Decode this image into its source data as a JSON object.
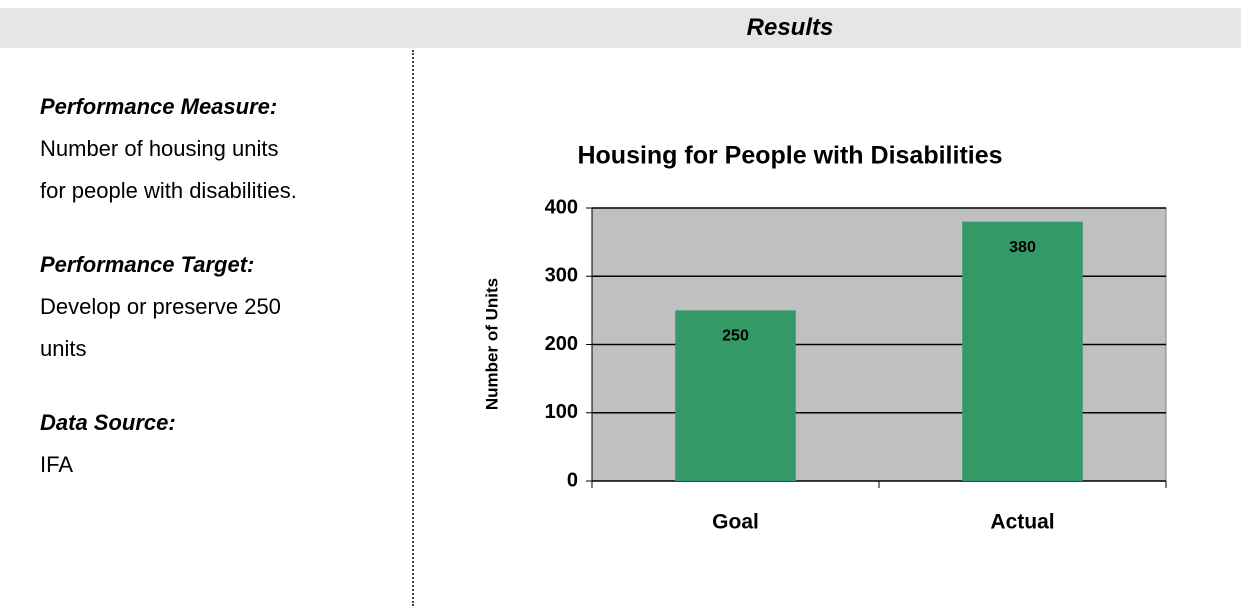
{
  "header": {
    "title": "Results"
  },
  "sections": [
    {
      "label": "Performance Measure:",
      "lines": [
        "Number of housing units",
        "for people with disabilities."
      ]
    },
    {
      "label": "Performance Target:",
      "lines": [
        "Develop or preserve 250",
        "units"
      ]
    },
    {
      "label": "Data Source:",
      "lines": [
        "IFA"
      ]
    }
  ],
  "chart_data": {
    "type": "bar",
    "title": "Housing for People with Disabilities",
    "y_label": "Number of Units",
    "categories": [
      "Goal",
      "Actual"
    ],
    "values": [
      250,
      380
    ],
    "color": "#339966",
    "ylim": [
      0,
      400
    ],
    "yticks": [
      0,
      100,
      200,
      300,
      400
    ],
    "grid": true,
    "plot_background": "#c0c0c0"
  }
}
